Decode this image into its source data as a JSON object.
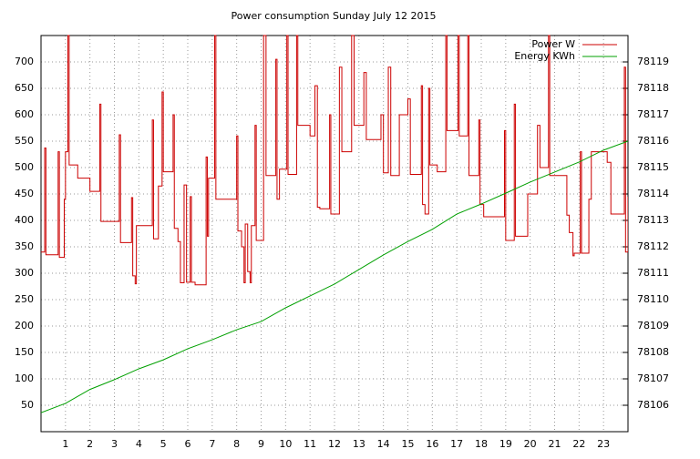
{
  "chart_data": {
    "type": "line",
    "title": "Power consumption Sunday July 12 2015",
    "xlim": [
      0,
      24
    ],
    "xticks": [
      1,
      2,
      3,
      4,
      5,
      6,
      7,
      8,
      9,
      10,
      11,
      12,
      13,
      14,
      15,
      16,
      17,
      18,
      19,
      20,
      21,
      22,
      23
    ],
    "ylim": [
      0,
      750
    ],
    "yticks": [
      50,
      100,
      150,
      200,
      250,
      300,
      350,
      400,
      450,
      500,
      550,
      600,
      650,
      700
    ],
    "y2lim": [
      78105,
      78120
    ],
    "y2ticks": [
      78106,
      78107,
      78108,
      78109,
      78110,
      78111,
      78112,
      78113,
      78114,
      78115,
      78116,
      78117,
      78118,
      78119
    ],
    "grid": true,
    "legend": "top-right",
    "series": [
      {
        "name": "Power W",
        "color": "#cc0000",
        "step": true,
        "x": [
          0,
          0.15,
          0.2,
          0.7,
          0.75,
          0.95,
          1.0,
          1.1,
          1.15,
          1.5,
          2.0,
          2.4,
          2.45,
          3.2,
          3.25,
          3.7,
          3.75,
          3.85,
          3.9,
          4.55,
          4.6,
          4.8,
          4.95,
          5.0,
          5.4,
          5.45,
          5.6,
          5.7,
          5.85,
          5.95,
          6.1,
          6.15,
          6.3,
          6.75,
          6.8,
          6.85,
          7.1,
          7.15,
          8.0,
          8.05,
          8.2,
          8.3,
          8.35,
          8.45,
          8.55,
          8.6,
          8.75,
          8.8,
          9.1,
          9.2,
          9.6,
          9.65,
          9.75,
          10.05,
          10.1,
          10.45,
          10.5,
          11.0,
          11.2,
          11.3,
          11.4,
          11.8,
          11.85,
          12.2,
          12.3,
          12.7,
          12.8,
          13.2,
          13.3,
          13.9,
          14.0,
          14.2,
          14.3,
          14.65,
          14.75,
          15.0,
          15.1,
          15.55,
          15.6,
          15.7,
          15.85,
          15.9,
          16.2,
          16.55,
          16.6,
          17.05,
          17.1,
          17.45,
          17.5,
          17.9,
          17.95,
          18.1,
          18.95,
          19.0,
          19.35,
          19.4,
          19.9,
          20.3,
          20.4,
          20.75,
          20.8,
          21.5,
          21.6,
          21.75,
          21.8,
          22.05,
          22.1,
          22.4,
          22.5,
          23.15,
          23.3,
          23.85,
          23.9,
          24.0
        ],
        "values": [
          340,
          537,
          335,
          530,
          330,
          440,
          530,
          750,
          505,
          480,
          455,
          620,
          398,
          562,
          358,
          443,
          295,
          280,
          390,
          590,
          365,
          465,
          643,
          492,
          600,
          385,
          360,
          282,
          467,
          283,
          445,
          283,
          278,
          520,
          370,
          480,
          750,
          440,
          560,
          380,
          350,
          282,
          393,
          303,
          282,
          390,
          580,
          362,
          750,
          485,
          705,
          440,
          497,
          750,
          487,
          750,
          580,
          560,
          655,
          425,
          422,
          600,
          412,
          690,
          530,
          750,
          580,
          680,
          553,
          600,
          490,
          690,
          485,
          600,
          600,
          630,
          487,
          655,
          430,
          412,
          650,
          505,
          492,
          750,
          570,
          750,
          560,
          750,
          485,
          590,
          430,
          407,
          570,
          362,
          620,
          370,
          450,
          580,
          500,
          750,
          485,
          410,
          377,
          333,
          338,
          530,
          338,
          440,
          530,
          510,
          412,
          690,
          340,
          445
        ]
      },
      {
        "name": "Energy KWh",
        "color": "#00a000",
        "axis": "y2",
        "x": [
          0,
          1,
          2,
          3,
          4,
          5,
          6,
          7,
          8,
          9,
          10,
          11,
          12,
          13,
          14,
          15,
          16,
          17,
          18,
          19,
          20,
          21,
          22,
          23,
          24
        ],
        "values": [
          78105.72,
          78106.07,
          78106.6,
          78106.97,
          78107.38,
          78107.72,
          78108.14,
          78108.48,
          78108.86,
          78109.17,
          78109.69,
          78110.14,
          78110.59,
          78111.14,
          78111.69,
          78112.2,
          78112.66,
          78113.24,
          78113.62,
          78114.03,
          78114.45,
          78114.83,
          78115.21,
          78115.66,
          78116.0
        ]
      }
    ]
  }
}
